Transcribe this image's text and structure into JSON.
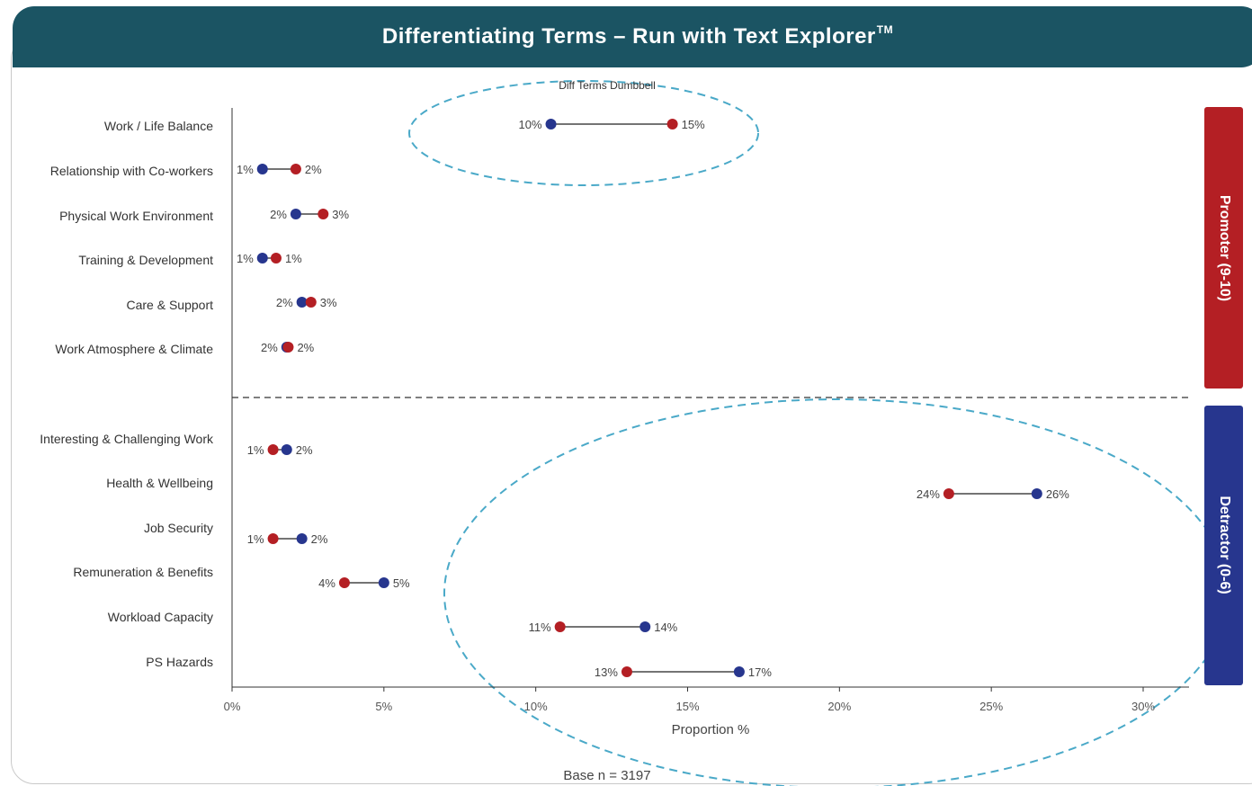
{
  "header": {
    "title": "Differentiating Terms – Run with Text Explorer",
    "trademark": "TM"
  },
  "footer": {
    "base_note": "Base n = 3197"
  },
  "colors": {
    "banner": "#1b5463",
    "promoter": "#b41f24",
    "detractor": "#27368e",
    "highlight": "#4aa9c8"
  },
  "groups": [
    {
      "label": "Promoter (9-10)",
      "color": "#b41f24"
    },
    {
      "label": "Detractor (0-6)",
      "color": "#27368e"
    }
  ],
  "chart_data": {
    "type": "dumbbell",
    "title": "Diff Terms Dumbbell",
    "xlabel": "Proportion %",
    "ylabel": "",
    "xlim": [
      0,
      31.5
    ],
    "xticks": [
      0,
      5,
      10,
      15,
      20,
      25,
      30
    ],
    "xtick_labels": [
      "0%",
      "5%",
      "10%",
      "15%",
      "20%",
      "25%",
      "30%"
    ],
    "grid": false,
    "series": [
      {
        "name": "Promoter (9-10)",
        "color": "#b41f24"
      },
      {
        "name": "Detractor (0-6)",
        "color": "#27368e"
      }
    ],
    "rows": [
      {
        "category": "Work / Life Balance",
        "group": "Promoter (9-10)",
        "blue": 10.5,
        "red": 14.5,
        "blue_label": "10%",
        "red_label": "15%"
      },
      {
        "category": "Relationship with Co-workers",
        "group": "Promoter (9-10)",
        "blue": 1.0,
        "red": 2.1,
        "blue_label": "1%",
        "red_label": "2%"
      },
      {
        "category": "Physical Work Environment",
        "group": "Promoter (9-10)",
        "blue": 2.1,
        "red": 3.0,
        "blue_label": "2%",
        "red_label": "3%"
      },
      {
        "category": "Training & Development",
        "group": "Promoter (9-10)",
        "blue": 1.0,
        "red": 1.45,
        "blue_label": "1%",
        "red_label": "1%"
      },
      {
        "category": "Care & Support",
        "group": "Promoter (9-10)",
        "blue": 2.3,
        "red": 2.6,
        "blue_label": "2%",
        "red_label": "3%"
      },
      {
        "category": "Work Atmosphere & Climate",
        "group": "Promoter (9-10)",
        "blue": 1.8,
        "red": 1.85,
        "blue_label": "2%",
        "red_label": "2%"
      },
      {
        "category": "Interesting & Challenging Work",
        "group": "Detractor (0-6)",
        "blue": 1.8,
        "red": 1.35,
        "blue_label": "2%",
        "red_label": "1%"
      },
      {
        "category": "Health & Wellbeing",
        "group": "Detractor (0-6)",
        "blue": 26.5,
        "red": 23.6,
        "blue_label": "26%",
        "red_label": "24%"
      },
      {
        "category": "Job Security",
        "group": "Detractor (0-6)",
        "blue": 2.3,
        "red": 1.35,
        "blue_label": "2%",
        "red_label": "1%"
      },
      {
        "category": "Remuneration & Benefits",
        "group": "Detractor (0-6)",
        "blue": 5.0,
        "red": 3.7,
        "blue_label": "5%",
        "red_label": "4%"
      },
      {
        "category": "Workload Capacity",
        "group": "Detractor (0-6)",
        "blue": 13.6,
        "red": 10.8,
        "blue_label": "14%",
        "red_label": "11%"
      },
      {
        "category": "PS Hazards",
        "group": "Detractor (0-6)",
        "blue": 16.7,
        "red": 13.0,
        "blue_label": "17%",
        "red_label": "13%"
      }
    ]
  }
}
